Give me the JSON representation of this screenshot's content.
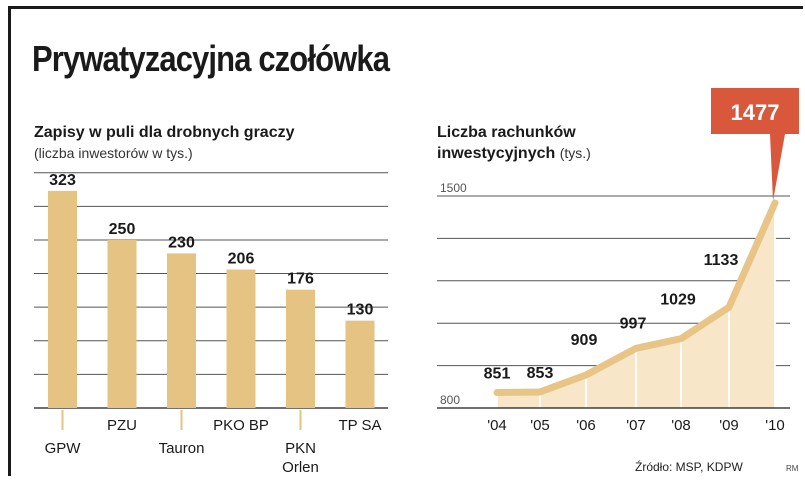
{
  "title": "Prywatyzacyjna czołówka",
  "source": "Źródło: MSP, KDPW",
  "signature": "RM",
  "colors": {
    "bar": "#e5c383",
    "area": "#f7e7c8",
    "line": "#e8c586",
    "callout": "#d9573a",
    "grid": "#555555"
  },
  "chart_data": [
    {
      "type": "bar",
      "title": "Zapisy w puli dla drobnych graczy",
      "subtitle": "(liczba inwestorów w tys.)",
      "categories": [
        "GPW",
        "PZU",
        "Tauron",
        "PKO BP",
        "PKN Orlen",
        "TP SA"
      ],
      "category_lines": [
        [
          "GPW"
        ],
        [
          "PZU"
        ],
        [
          "Tauron"
        ],
        [
          "PKO BP"
        ],
        [
          "PKN",
          "Orlen"
        ],
        [
          "TP SA"
        ]
      ],
      "label_row": [
        1,
        0,
        1,
        0,
        1,
        0
      ],
      "values": [
        323,
        250,
        230,
        206,
        176,
        130
      ],
      "value_labels": [
        "323",
        "250",
        "230",
        "206",
        "176",
        "130"
      ],
      "ylim": [
        0,
        360
      ],
      "grid": true
    },
    {
      "type": "area",
      "title": "Liczba rachunków",
      "title_line2": "inwestycyjnych",
      "unit": "(tys.)",
      "x": [
        "'04",
        "'05",
        "'06",
        "'07",
        "'08",
        "'09",
        "'10"
      ],
      "values": [
        851,
        853,
        909,
        997,
        1029,
        1133,
        1477
      ],
      "value_labels": [
        "851",
        "853",
        "909",
        "997",
        "1029",
        "1133",
        "1477"
      ],
      "yticks": [
        "1500",
        "800"
      ],
      "ylim": [
        800,
        1500
      ],
      "highlight": "1477",
      "grid": true
    }
  ]
}
